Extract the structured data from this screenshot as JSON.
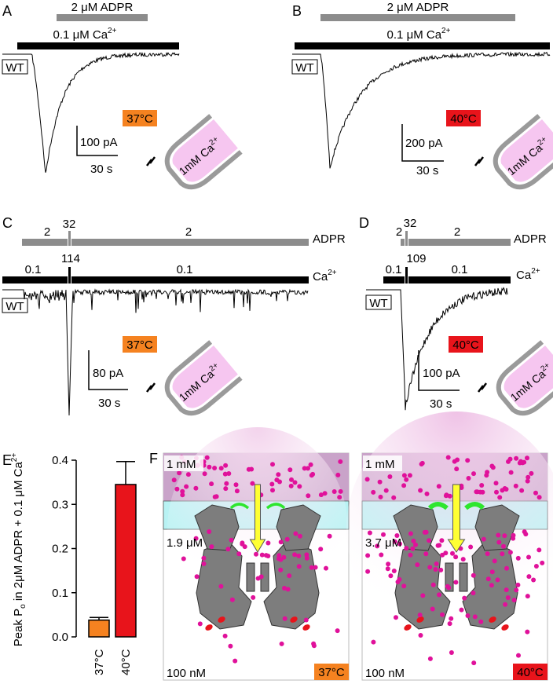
{
  "colors": {
    "orange": "#f58220",
    "red": "#e8141b",
    "gray_bar": "#8c8c8c",
    "pink_pipette": "#f6c6f0",
    "pipette_rim": "#9a9a9a",
    "cyan_membrane": "#b8f2f3",
    "purple_bath": "#c9a3c9",
    "dot": "#e0119a",
    "channel": "#7d7d7d",
    "arrow_yellow": "#ffff33",
    "arrow_green": "#2ee62e"
  },
  "panels": {
    "A": {
      "letter": "A",
      "adpr_label": "2 μM ADPR",
      "ca_label": "0.1 μM Ca",
      "ca_sup": "2+",
      "cell": "WT",
      "temp": "37°C",
      "scale_y": "100 pA",
      "scale_x": "30 s",
      "pipette": "1mM Ca",
      "pipette_sup": "2+"
    },
    "B": {
      "letter": "B",
      "adpr_label": "2 μM ADPR",
      "ca_label": "0.1 μM Ca",
      "ca_sup": "2+",
      "cell": "WT",
      "temp": "40°C",
      "scale_y": "200 pA",
      "scale_x": "30 s",
      "pipette": "1mM Ca",
      "pipette_sup": "2+"
    },
    "C": {
      "letter": "C",
      "adpr_a": "2",
      "adpr_b": "32",
      "adpr_c": "2",
      "adpr_name": "ADPR",
      "ca_a": "0.1",
      "ca_b": "114",
      "ca_c": "0.1",
      "ca_name": "Ca",
      "ca_sup": "2+",
      "cell": "WT",
      "temp": "37°C",
      "scale_y": "80 pA",
      "scale_x": "30 s",
      "pipette": "1mM Ca",
      "pipette_sup": "2+"
    },
    "D": {
      "letter": "D",
      "adpr_a": "2",
      "adpr_b": "32",
      "adpr_c": "2",
      "adpr_name": "ADPR",
      "ca_a": "0.1",
      "ca_b": "109",
      "ca_c": "0.1",
      "ca_name": "Ca",
      "ca_sup": "2+",
      "cell": "WT",
      "temp": "40°C",
      "scale_y": "100 pA",
      "scale_x": "30 s",
      "pipette": "1mM Ca",
      "pipette_sup": "2+"
    },
    "E": {
      "letter": "E",
      "ylabel_main": "Peak P",
      "ylabel_sub": "o",
      "ylabel_rest": " in 2μM ADPR + 0.1 μM Ca",
      "ylabel_sup": "2+"
    },
    "F": {
      "letter": "F",
      "left": {
        "top": "1 mM",
        "mid": "1.9 μM",
        "bottom": "100 nM",
        "temp": "37°C"
      },
      "right": {
        "top": "1 mM",
        "mid": "3.7 μM",
        "bottom": "100 nM",
        "temp": "40°C"
      }
    }
  },
  "chart_data": {
    "type": "bar",
    "categories": [
      "37°C",
      "40°C"
    ],
    "values": [
      0.038,
      0.345
    ],
    "errors": [
      0.006,
      0.052
    ],
    "colors": [
      "#f58220",
      "#e8141b"
    ],
    "ylim": [
      0,
      0.4
    ],
    "yticks": [
      "0.0",
      "0.1",
      "0.2",
      "0.3",
      "0.4"
    ],
    "tick_values": [
      0,
      0.1,
      0.2,
      0.3,
      0.4
    ]
  }
}
